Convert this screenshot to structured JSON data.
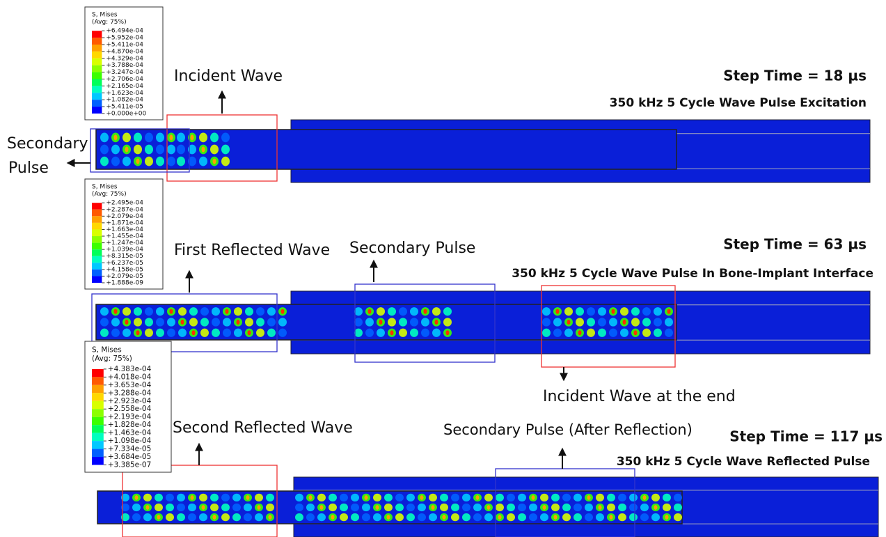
{
  "panels": [
    {
      "legend": {
        "title": "S, Mises",
        "subtitle": "(Avg: 75%)",
        "values": [
          "+6.494e-04",
          "+5.952e-04",
          "+5.411e-04",
          "+4.870e-04",
          "+4.329e-04",
          "+3.788e-04",
          "+3.247e-04",
          "+2.706e-04",
          "+2.165e-04",
          "+1.623e-04",
          "+1.082e-04",
          "+5.411e-05",
          "+0.000e+00"
        ]
      },
      "step_time": "Step Time = 18 µs",
      "caption": "350 kHz 5 Cycle Wave Pulse Excitation",
      "annotations": [
        "Incident Wave",
        "Secondary",
        "Pulse"
      ]
    },
    {
      "legend": {
        "title": "S, Mises",
        "subtitle": "(Avg: 75%)",
        "values": [
          "+2.495e-04",
          "+2.287e-04",
          "+2.079e-04",
          "+1.871e-04",
          "+1.663e-04",
          "+1.455e-04",
          "+1.247e-04",
          "+1.039e-04",
          "+8.315e-05",
          "+6.237e-05",
          "+4.158e-05",
          "+2.079e-05",
          "+1.888e-09"
        ]
      },
      "step_time": "Step Time = 63 µs",
      "caption": "350 kHz 5 Cycle Wave Pulse In Bone-Implant Interface",
      "annotations": [
        "First Reflected Wave",
        "Secondary Pulse",
        "Incident Wave at the end"
      ]
    },
    {
      "legend": {
        "title": "S, Mises",
        "subtitle": "(Avg: 75%)",
        "values": [
          "+4.383e-04",
          "+4.018e-04",
          "+3.653e-04",
          "+3.288e-04",
          "+2.923e-04",
          "+2.558e-04",
          "+2.193e-04",
          "+1.828e-04",
          "+1.463e-04",
          "+1.098e-04",
          "+7.334e-05",
          "+3.684e-05",
          "+3.385e-07"
        ]
      },
      "step_time": "Step Time = 117 µs",
      "caption": "350 kHz 5 Cycle Wave Reflected Pulse",
      "annotations": [
        "Second Reflected Wave",
        "Secondary Pulse (After Reflection)"
      ]
    }
  ]
}
